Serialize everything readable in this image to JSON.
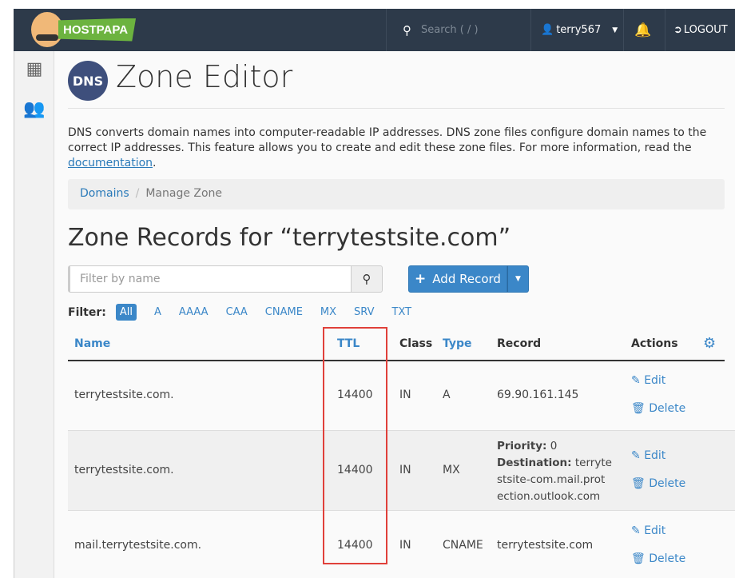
{
  "header": {
    "brand": "HOSTPAPA",
    "search_placeholder": "Search ( / )",
    "user": "terry567",
    "logout": "LOGOUT"
  },
  "page": {
    "icon_text": "DNS",
    "title": "Zone Editor",
    "description": "DNS converts domain names into computer-readable IP addresses. DNS zone files configure domain names to the correct IP addresses. This feature allows you to create and edit these zone files. For more information, read the ",
    "doc_link": "documentation",
    "period": "."
  },
  "breadcrumb": {
    "root": "Domains",
    "sep": "/",
    "current": "Manage Zone"
  },
  "zone": {
    "heading": "Zone Records for “terrytestsite.com”",
    "filter_placeholder": "Filter by name",
    "add_record": "Add Record"
  },
  "filters": {
    "label": "Filter:",
    "items": [
      "All",
      "A",
      "AAAA",
      "CAA",
      "CNAME",
      "MX",
      "SRV",
      "TXT"
    ],
    "active": "All"
  },
  "table": {
    "headers": {
      "name": "Name",
      "ttl": "TTL",
      "class": "Class",
      "type": "Type",
      "record": "Record",
      "actions": "Actions"
    },
    "edit": "Edit",
    "delete": "Delete",
    "rows": [
      {
        "name": "terrytestsite.com.",
        "ttl": "14400",
        "class": "IN",
        "type": "A",
        "record": "69.90.161.145"
      },
      {
        "name": "terrytestsite.com.",
        "ttl": "14400",
        "class": "IN",
        "type": "MX",
        "priority_label": "Priority:",
        "priority": "0",
        "dest_label": "Destination:",
        "dest1": "terryte",
        "dest2": "stsite-com.mail.prot",
        "dest3": "ection.outlook.com"
      },
      {
        "name": "mail.terrytestsite.com.",
        "ttl": "14400",
        "class": "IN",
        "type": "CNAME",
        "record": "terrytestsite.com"
      }
    ]
  },
  "colors": {
    "topbar": "#2d3a4a",
    "accent": "#3b87c8",
    "highlight": "#e0403a"
  }
}
